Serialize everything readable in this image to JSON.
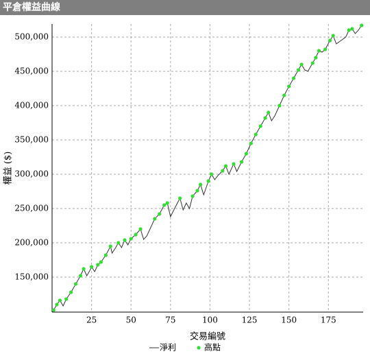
{
  "header": {
    "title": "平倉權益曲線"
  },
  "chart_data": {
    "type": "line",
    "xlabel": "交易編號",
    "ylabel": "權益 ($)",
    "x": [
      1,
      3,
      5,
      7,
      9,
      12,
      15,
      18,
      20,
      22,
      24,
      25,
      27,
      29,
      31,
      34,
      37,
      38,
      40,
      42,
      44,
      46,
      48,
      50,
      53,
      56,
      58,
      60,
      62,
      65,
      68,
      71,
      73,
      75,
      78,
      81,
      83,
      85,
      87,
      89,
      92,
      94,
      96,
      99,
      101,
      103,
      105,
      108,
      110,
      112,
      115,
      117,
      120,
      123,
      126,
      129,
      132,
      135,
      137,
      139,
      141,
      144,
      147,
      150,
      153,
      156,
      158,
      160,
      162,
      165,
      167,
      169,
      171,
      173,
      176,
      178,
      180,
      183,
      186,
      188,
      190,
      192,
      194,
      196
    ],
    "series": [
      {
        "name": "淨利",
        "color": "#333333",
        "values": [
          102000,
          110000,
          116000,
          108000,
          118000,
          128000,
          140000,
          152000,
          162000,
          152000,
          160000,
          165000,
          158000,
          168000,
          172000,
          182000,
          195000,
          185000,
          192000,
          200000,
          193000,
          204000,
          197000,
          206000,
          212000,
          220000,
          205000,
          210000,
          220000,
          235000,
          242000,
          255000,
          258000,
          238000,
          252000,
          265000,
          248000,
          258000,
          250000,
          268000,
          276000,
          285000,
          270000,
          290000,
          300000,
          292000,
          298000,
          305000,
          312000,
          300000,
          315000,
          304000,
          318000,
          330000,
          345000,
          358000,
          370000,
          382000,
          390000,
          378000,
          385000,
          400000,
          415000,
          428000,
          440000,
          452000,
          460000,
          452000,
          450000,
          462000,
          470000,
          480000,
          478000,
          482000,
          495000,
          502000,
          490000,
          495000,
          500000,
          510000,
          512000,
          505000,
          510000,
          517000
        ]
      },
      {
        "name": "高點",
        "color": "#33dd33",
        "values": [
          102000,
          110000,
          116000,
          null,
          118000,
          128000,
          140000,
          152000,
          162000,
          null,
          null,
          165000,
          null,
          168000,
          172000,
          182000,
          195000,
          null,
          null,
          200000,
          null,
          204000,
          null,
          206000,
          212000,
          220000,
          null,
          null,
          null,
          235000,
          242000,
          255000,
          258000,
          null,
          null,
          265000,
          null,
          null,
          null,
          268000,
          276000,
          285000,
          null,
          290000,
          300000,
          null,
          null,
          305000,
          312000,
          null,
          315000,
          null,
          318000,
          330000,
          345000,
          358000,
          370000,
          382000,
          390000,
          null,
          null,
          400000,
          415000,
          428000,
          440000,
          452000,
          460000,
          null,
          null,
          462000,
          470000,
          480000,
          null,
          482000,
          495000,
          502000,
          null,
          null,
          null,
          510000,
          512000,
          null,
          null,
          517000
        ]
      }
    ],
    "xlim": [
      0,
      197
    ],
    "xticks": [
      25,
      50,
      75,
      100,
      125,
      150,
      175
    ],
    "ylim": [
      99000,
      519000
    ],
    "yticks": [
      {
        "value": 150000,
        "label": "150,000"
      },
      {
        "value": 200000,
        "label": "200,000"
      },
      {
        "value": 250000,
        "label": "250,000"
      },
      {
        "value": 300000,
        "label": "300,000"
      },
      {
        "value": 350000,
        "label": "350,000"
      },
      {
        "value": 400000,
        "label": "400,000"
      },
      {
        "value": 450000,
        "label": "450,000"
      },
      {
        "value": 500000,
        "label": "500,000"
      }
    ],
    "grid": true,
    "legend": "bottom"
  }
}
